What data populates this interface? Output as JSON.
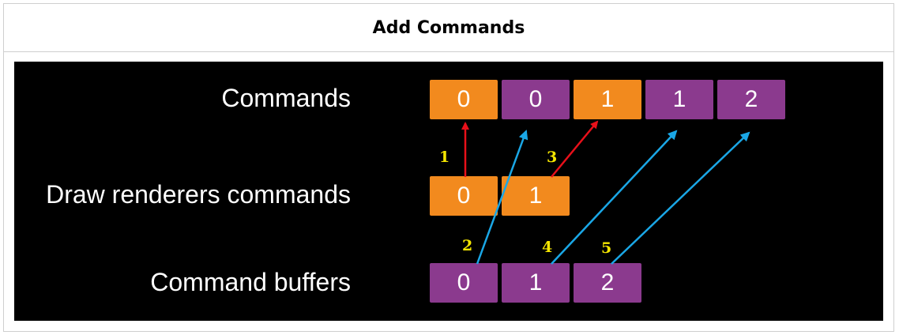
{
  "title": "Add Commands",
  "rows": {
    "commands": {
      "label": "Commands",
      "cells": [
        {
          "text": "0",
          "color": "#f28a1e"
        },
        {
          "text": "0",
          "color": "#8b3a8e"
        },
        {
          "text": "1",
          "color": "#f28a1e"
        },
        {
          "text": "1",
          "color": "#8b3a8e"
        },
        {
          "text": "2",
          "color": "#8b3a8e"
        }
      ]
    },
    "draw_renderers": {
      "label": "Draw renderers commands",
      "cells": [
        {
          "text": "0",
          "color": "#f28a1e"
        },
        {
          "text": "1",
          "color": "#f28a1e"
        }
      ]
    },
    "command_buffers": {
      "label": "Command buffers",
      "cells": [
        {
          "text": "0",
          "color": "#8b3a8e"
        },
        {
          "text": "1",
          "color": "#8b3a8e"
        },
        {
          "text": "2",
          "color": "#8b3a8e"
        }
      ]
    }
  },
  "steps": [
    "1",
    "2",
    "3",
    "4",
    "5"
  ],
  "colors": {
    "orange": "#f28a1e",
    "purple": "#8b3a8e",
    "red_arrow": "#e8101a",
    "blue_arrow": "#1aa7e6",
    "step_label": "#f5e600"
  }
}
